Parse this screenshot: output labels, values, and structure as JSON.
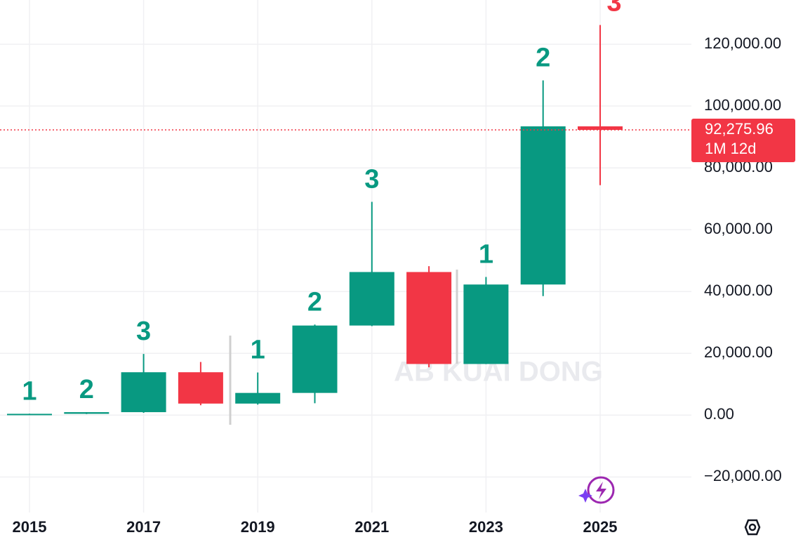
{
  "chart_data": {
    "type": "candlestick",
    "categories": [
      "2015",
      null,
      "2017",
      null,
      "2019",
      null,
      "2021",
      null,
      "2023",
      null,
      "2025"
    ],
    "open": [
      314,
      430,
      963,
      13880,
      3740,
      7190,
      28990,
      46300,
      16550,
      42260,
      93430
    ],
    "high": [
      465,
      980,
      19800,
      17200,
      13800,
      29300,
      69000,
      48200,
      44700,
      108300,
      126200
    ],
    "low": [
      152,
      350,
      750,
      3200,
      3400,
      3850,
      28800,
      15500,
      16500,
      38500,
      74400
    ],
    "close": [
      430,
      963,
      13880,
      3740,
      7190,
      28990,
      46300,
      16550,
      42260,
      93430,
      92275.96
    ],
    "counts": [
      1,
      2,
      3,
      null,
      1,
      2,
      3,
      null,
      1,
      2,
      3
    ],
    "up_color": "#089981",
    "down_color": "#f23645",
    "ylim": [
      -31500,
      134300
    ],
    "yticks": [
      {
        "value": -20000,
        "label": "−20,000.00"
      },
      {
        "value": 0,
        "label": "0.00"
      },
      {
        "value": 20000,
        "label": "20,000.00"
      },
      {
        "value": 40000,
        "label": "40,000.00"
      },
      {
        "value": 60000,
        "label": "60,000.00"
      },
      {
        "value": 80000,
        "label": "80,000.00"
      },
      {
        "value": 100000,
        "label": "100,000.00"
      },
      {
        "value": 120000,
        "label": "120,000.00"
      }
    ],
    "last_price": {
      "value": 92275.96,
      "label": "92,275.96"
    },
    "countdown": "1M 12d",
    "watermark": "AB KUAI DONG",
    "grid": true
  }
}
